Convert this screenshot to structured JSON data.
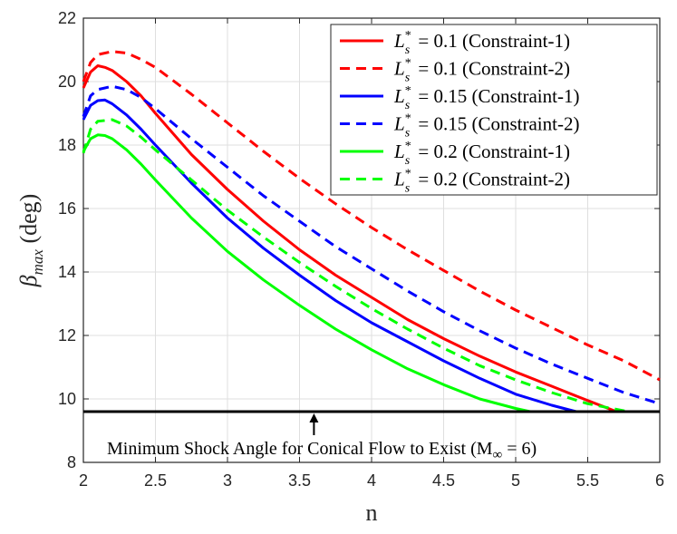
{
  "chart_data": {
    "type": "line",
    "title": "",
    "xlabel": "n",
    "ylabel_symbol": "β",
    "ylabel_sub": "max",
    "ylabel_unit": "(deg)",
    "xlim": [
      2,
      6
    ],
    "ylim": [
      8,
      22
    ],
    "xticks": [
      "2",
      "2.5",
      "3",
      "3.5",
      "4",
      "4.5",
      "5",
      "5.5",
      "6"
    ],
    "yticks": [
      "8",
      "10",
      "12",
      "14",
      "16",
      "18",
      "20",
      "22"
    ],
    "grid": true,
    "legend_position": "top-right",
    "series": [
      {
        "name": "L*s = 0.1 (Constraint-1)",
        "sym": "L",
        "sub": "s",
        "sup": "*",
        "value": "= 0.1",
        "tag": "(Constraint-1)",
        "color": "#ff0000",
        "dash": "solid",
        "x": [
          2.0,
          2.05,
          2.1,
          2.15,
          2.2,
          2.3,
          2.4,
          2.5,
          2.75,
          3.0,
          3.25,
          3.5,
          3.75,
          4.0,
          4.25,
          4.5,
          4.75,
          5.0,
          5.25,
          5.5,
          5.7
        ],
        "y": [
          19.8,
          20.3,
          20.5,
          20.45,
          20.35,
          20.0,
          19.55,
          19.0,
          17.7,
          16.6,
          15.6,
          14.7,
          13.9,
          13.2,
          12.5,
          11.9,
          11.35,
          10.85,
          10.4,
          9.95,
          9.6
        ]
      },
      {
        "name": "L*s = 0.1 (Constraint-2)",
        "sym": "L",
        "sub": "s",
        "sup": "*",
        "value": "= 0.1",
        "tag": "(Constraint-2)",
        "color": "#ff0000",
        "dash": "dashed",
        "x": [
          2.0,
          2.05,
          2.1,
          2.2,
          2.3,
          2.4,
          2.5,
          2.75,
          3.0,
          3.25,
          3.5,
          3.75,
          4.0,
          4.25,
          4.5,
          4.75,
          5.0,
          5.25,
          5.5,
          5.75,
          6.0
        ],
        "y": [
          20.0,
          20.6,
          20.85,
          20.95,
          20.9,
          20.7,
          20.45,
          19.6,
          18.7,
          17.8,
          16.95,
          16.15,
          15.4,
          14.7,
          14.05,
          13.4,
          12.8,
          12.25,
          11.7,
          11.2,
          10.6
        ]
      },
      {
        "name": "L*s = 0.15 (Constraint-1)",
        "sym": "L",
        "sub": "s",
        "sup": "*",
        "value": "= 0.15",
        "tag": "(Constraint-1)",
        "color": "#0000ff",
        "dash": "solid",
        "x": [
          2.0,
          2.05,
          2.1,
          2.15,
          2.2,
          2.3,
          2.4,
          2.5,
          2.75,
          3.0,
          3.25,
          3.5,
          3.75,
          4.0,
          4.25,
          4.5,
          4.75,
          5.0,
          5.25,
          5.42
        ],
        "y": [
          18.8,
          19.25,
          19.4,
          19.42,
          19.3,
          18.95,
          18.5,
          18.0,
          16.8,
          15.7,
          14.75,
          13.9,
          13.1,
          12.4,
          11.8,
          11.2,
          10.65,
          10.15,
          9.8,
          9.6
        ]
      },
      {
        "name": "L*s = 0.15 (Constraint-2)",
        "sym": "L",
        "sub": "s",
        "sup": "*",
        "value": "= 0.15",
        "tag": "(Constraint-2)",
        "color": "#0000ff",
        "dash": "dashed",
        "x": [
          2.0,
          2.05,
          2.1,
          2.2,
          2.3,
          2.4,
          2.5,
          2.75,
          3.0,
          3.25,
          3.5,
          3.75,
          4.0,
          4.25,
          4.5,
          4.75,
          5.0,
          5.25,
          5.5,
          5.75,
          6.0
        ],
        "y": [
          18.9,
          19.55,
          19.75,
          19.85,
          19.75,
          19.5,
          19.15,
          18.2,
          17.3,
          16.4,
          15.6,
          14.8,
          14.1,
          13.4,
          12.75,
          12.15,
          11.6,
          11.1,
          10.65,
          10.2,
          9.85
        ]
      },
      {
        "name": "L*s = 0.2 (Constraint-1)",
        "sym": "L",
        "sub": "s",
        "sup": "*",
        "value": "= 0.2",
        "tag": "(Constraint-1)",
        "color": "#00ff00",
        "dash": "solid",
        "x": [
          2.0,
          2.05,
          2.1,
          2.15,
          2.2,
          2.3,
          2.4,
          2.5,
          2.75,
          3.0,
          3.25,
          3.5,
          3.75,
          4.0,
          4.25,
          4.5,
          4.75,
          5.0,
          5.1
        ],
        "y": [
          17.8,
          18.2,
          18.32,
          18.3,
          18.2,
          17.85,
          17.4,
          16.9,
          15.7,
          14.65,
          13.75,
          12.95,
          12.2,
          11.55,
          10.95,
          10.45,
          10.0,
          9.7,
          9.6
        ]
      },
      {
        "name": "L*s = 0.2 (Constraint-2)",
        "sym": "L",
        "sub": "s",
        "sup": "*",
        "value": "= 0.2",
        "tag": "(Constraint-2)",
        "color": "#00ff00",
        "dash": "dashed",
        "x": [
          2.0,
          2.05,
          2.1,
          2.2,
          2.3,
          2.4,
          2.5,
          2.75,
          3.0,
          3.25,
          3.5,
          3.75,
          4.0,
          4.25,
          4.5,
          4.75,
          5.0,
          5.25,
          5.5,
          5.78
        ],
        "y": [
          17.75,
          18.5,
          18.75,
          18.8,
          18.6,
          18.25,
          17.85,
          16.9,
          15.95,
          15.1,
          14.3,
          13.55,
          12.85,
          12.2,
          11.6,
          11.05,
          10.6,
          10.2,
          9.85,
          9.6
        ]
      }
    ],
    "reference_line": {
      "y": 9.6,
      "color": "#000000"
    },
    "annotation": {
      "text": "Minimum Shock Angle for Conical Flow to Exist (M",
      "sub": "∞",
      "tail": " = 6)",
      "arrow_x": 3.6
    }
  }
}
